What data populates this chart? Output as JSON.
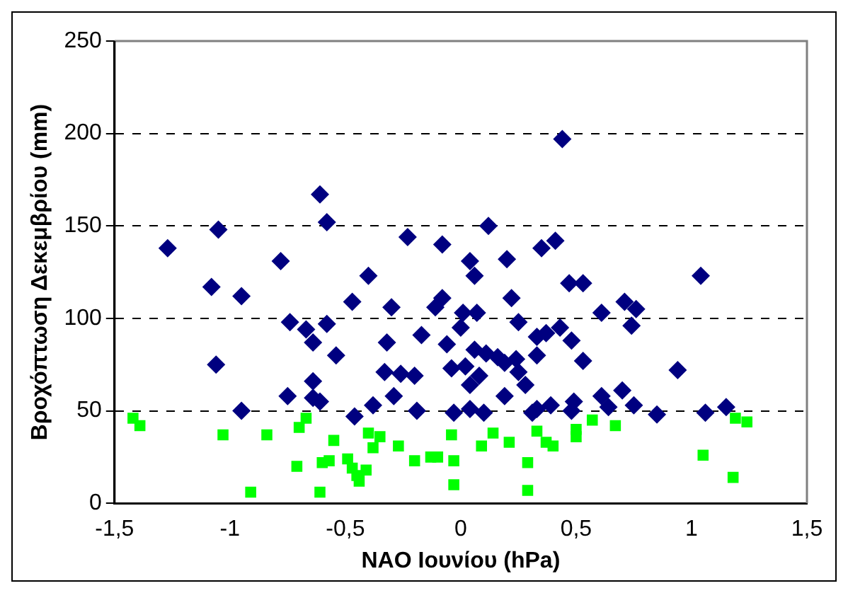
{
  "chart_data": {
    "type": "scatter",
    "xlabel": "NAO Ιουνίου (hPa)",
    "ylabel": "Βροχόπτωση Δεκεμβρίου (mm)",
    "xlim": [
      -1.5,
      1.5
    ],
    "xticks": [
      {
        "value": -1.5,
        "label": "-1,5"
      },
      -1,
      {
        "value": -0.5,
        "label": "-0,5"
      },
      0,
      {
        "value": 0.5,
        "label": "0,5"
      },
      1,
      {
        "value": 1.5,
        "label": "1,5"
      }
    ],
    "ylim": [
      0,
      250
    ],
    "yticks": [
      0,
      50,
      100,
      150,
      200,
      250
    ],
    "grid": "y",
    "legend": false,
    "marker": "diamond",
    "series": [
      {
        "color": "#000080",
        "x": [
          -1.27,
          -1.05,
          -1.08,
          -0.95,
          -1.06,
          -0.95,
          -0.78,
          -0.74,
          -0.67,
          -0.61,
          -0.58,
          -0.58,
          -0.64,
          -0.54,
          -0.64,
          -0.64,
          -0.61,
          -0.75,
          -0.47,
          -0.4,
          -0.46,
          -0.38,
          -0.32,
          -0.3,
          -0.33,
          -0.26,
          -0.29,
          -0.23,
          -0.2,
          -0.19,
          -0.17,
          -0.11,
          -0.08,
          -0.08,
          -0.06,
          -0.04,
          -0.03,
          0.02,
          0.01,
          0,
          0.07,
          0.04,
          0.06,
          0.06,
          0.04,
          0.08,
          0.04,
          0.1,
          0.12,
          0.11,
          0.16,
          0.19,
          0.2,
          0.22,
          0.24,
          0.25,
          0.28,
          0.19,
          0.25,
          0.35,
          0.41,
          0.44,
          0.33,
          0.37,
          0.43,
          0.33,
          0.48,
          0.47,
          0.53,
          0.53,
          0.31,
          0.33,
          0.39,
          0.48,
          0.49,
          0.61,
          0.61,
          0.64,
          0.7,
          0.71,
          0.76,
          0.74,
          0.75,
          0.85,
          0.94,
          1.04,
          1.06,
          1.15
        ],
        "values": [
          138,
          148,
          117,
          112,
          75,
          50,
          131,
          98,
          94,
          167,
          152,
          97,
          87,
          80,
          66,
          57,
          55,
          58,
          109,
          123,
          47,
          53,
          87,
          106,
          71,
          70,
          58,
          144,
          69,
          50,
          91,
          106,
          111,
          140,
          86,
          73,
          49,
          74,
          103,
          95,
          103,
          131,
          123,
          83,
          64,
          69,
          51,
          49,
          150,
          81,
          79,
          76,
          132,
          111,
          78,
          71,
          64,
          58,
          98,
          138,
          142,
          197,
          90,
          92,
          95,
          80,
          88,
          119,
          119,
          77,
          49,
          51,
          53,
          50,
          55,
          103,
          58,
          52,
          61,
          109,
          105,
          96,
          53,
          48,
          72,
          123,
          49,
          52
        ]
      },
      {
        "color": "#00ff00",
        "marker": "square",
        "x": [
          -1.42,
          -1.39,
          -1.03,
          -0.91,
          -0.84,
          -0.71,
          -0.7,
          -0.67,
          -0.61,
          -0.55,
          -0.6,
          -0.57,
          -0.49,
          -0.47,
          -0.45,
          -0.44,
          -0.4,
          -0.41,
          -0.38,
          -0.35,
          -0.27,
          -0.2,
          -0.13,
          -0.1,
          -0.04,
          -0.03,
          -0.03,
          0.09,
          0.14,
          0.21,
          0.29,
          0.29,
          0.33,
          0.37,
          0.4,
          0.5,
          0.5,
          0.57,
          0.67,
          1.05,
          1.18,
          1.19,
          1.24
        ],
        "values": [
          46,
          42,
          37,
          6,
          37,
          20,
          41,
          46,
          6,
          34,
          22,
          23,
          24,
          19,
          15,
          12,
          38,
          18,
          30,
          36,
          31,
          23,
          25,
          25,
          37,
          23,
          10,
          31,
          38,
          33,
          22,
          7,
          39,
          33,
          31,
          40,
          36,
          45,
          42,
          26,
          14,
          46,
          44
        ]
      }
    ]
  }
}
